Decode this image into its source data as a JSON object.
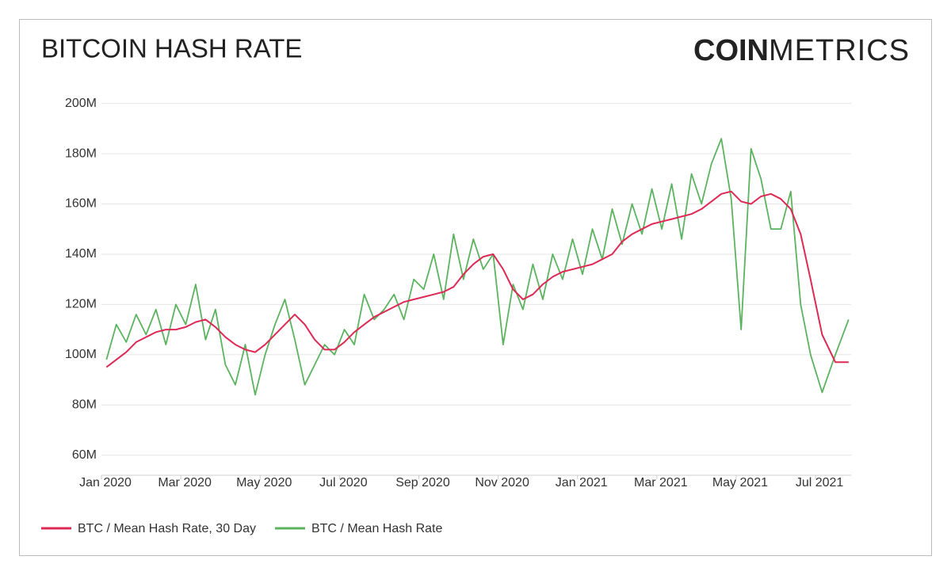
{
  "chart_data": {
    "type": "line",
    "title": "BITCOIN HASH RATE",
    "brand": {
      "bold": "COIN",
      "light": "METRICS"
    },
    "x": [
      "2020-01",
      "2020-01",
      "2020-01",
      "2020-01",
      "2020-02",
      "2020-02",
      "2020-02",
      "2020-02",
      "2020-03",
      "2020-03",
      "2020-03",
      "2020-03",
      "2020-04",
      "2020-04",
      "2020-04",
      "2020-04",
      "2020-05",
      "2020-05",
      "2020-05",
      "2020-05",
      "2020-06",
      "2020-06",
      "2020-06",
      "2020-06",
      "2020-07",
      "2020-07",
      "2020-07",
      "2020-07",
      "2020-08",
      "2020-08",
      "2020-08",
      "2020-08",
      "2020-09",
      "2020-09",
      "2020-09",
      "2020-09",
      "2020-10",
      "2020-10",
      "2020-10",
      "2020-10",
      "2020-11",
      "2020-11",
      "2020-11",
      "2020-11",
      "2020-12",
      "2020-12",
      "2020-12",
      "2020-12",
      "2021-01",
      "2021-01",
      "2021-01",
      "2021-01",
      "2021-02",
      "2021-02",
      "2021-02",
      "2021-02",
      "2021-03",
      "2021-03",
      "2021-03",
      "2021-03",
      "2021-04",
      "2021-04",
      "2021-04",
      "2021-04",
      "2021-05",
      "2021-05",
      "2021-05",
      "2021-05",
      "2021-06",
      "2021-06",
      "2021-06",
      "2021-06",
      "2021-07",
      "2021-07",
      "2021-07"
    ],
    "series": [
      {
        "name": "BTC / Mean Hash Rate, 30 Day",
        "color": "#dc2a55",
        "values": [
          95000000,
          98000000,
          101000000,
          105000000,
          107000000,
          109000000,
          110000000,
          110000000,
          111000000,
          113000000,
          114000000,
          111000000,
          107000000,
          104000000,
          102000000,
          101000000,
          104000000,
          108000000,
          112000000,
          116000000,
          112000000,
          106000000,
          102000000,
          102000000,
          105000000,
          109000000,
          112000000,
          115000000,
          117000000,
          119000000,
          121000000,
          122000000,
          123000000,
          124000000,
          125000000,
          127000000,
          132000000,
          136000000,
          139000000,
          140000000,
          134000000,
          126000000,
          122000000,
          124000000,
          128000000,
          131000000,
          133000000,
          134000000,
          135000000,
          136000000,
          138000000,
          140000000,
          145000000,
          148000000,
          150000000,
          152000000,
          153000000,
          154000000,
          155000000,
          156000000,
          158000000,
          161000000,
          164000000,
          165000000,
          161000000,
          160000000,
          163000000,
          164000000,
          162000000,
          158000000,
          148000000,
          130000000,
          108000000,
          97000000,
          97000000
        ]
      },
      {
        "name": "BTC / Mean Hash Rate",
        "color": "#5cb35f",
        "values": [
          98000000,
          112000000,
          105000000,
          116000000,
          108000000,
          118000000,
          104000000,
          120000000,
          112000000,
          128000000,
          106000000,
          118000000,
          96000000,
          88000000,
          104000000,
          84000000,
          100000000,
          112000000,
          122000000,
          106000000,
          88000000,
          96000000,
          104000000,
          100000000,
          110000000,
          104000000,
          124000000,
          114000000,
          118000000,
          124000000,
          114000000,
          130000000,
          126000000,
          140000000,
          122000000,
          148000000,
          130000000,
          146000000,
          134000000,
          140000000,
          104000000,
          128000000,
          118000000,
          136000000,
          122000000,
          140000000,
          130000000,
          146000000,
          132000000,
          150000000,
          138000000,
          158000000,
          144000000,
          160000000,
          148000000,
          166000000,
          150000000,
          168000000,
          146000000,
          172000000,
          160000000,
          176000000,
          186000000,
          162000000,
          110000000,
          182000000,
          170000000,
          150000000,
          150000000,
          165000000,
          120000000,
          100000000,
          85000000,
          100000000,
          114000000
        ]
      }
    ],
    "xticks": [
      {
        "value": "2020-01",
        "label": "Jan 2020"
      },
      {
        "value": "2020-03",
        "label": "Mar 2020"
      },
      {
        "value": "2020-05",
        "label": "May 2020"
      },
      {
        "value": "2020-07",
        "label": "Jul 2020"
      },
      {
        "value": "2020-09",
        "label": "Sep 2020"
      },
      {
        "value": "2020-11",
        "label": "Nov 2020"
      },
      {
        "value": "2021-01",
        "label": "Jan 2021"
      },
      {
        "value": "2021-03",
        "label": "Mar 2021"
      },
      {
        "value": "2021-05",
        "label": "May 2021"
      },
      {
        "value": "2021-07",
        "label": "Jul 2021"
      }
    ],
    "ylim": [
      52000000,
      204000000
    ],
    "yticks": [
      {
        "value": 60000000,
        "label": "60M"
      },
      {
        "value": 80000000,
        "label": "80M"
      },
      {
        "value": 100000000,
        "label": "100M"
      },
      {
        "value": 120000000,
        "label": "120M"
      },
      {
        "value": 140000000,
        "label": "140M"
      },
      {
        "value": 160000000,
        "label": "160M"
      },
      {
        "value": 180000000,
        "label": "180M"
      },
      {
        "value": 200000000,
        "label": "200M"
      }
    ],
    "grid": true
  }
}
